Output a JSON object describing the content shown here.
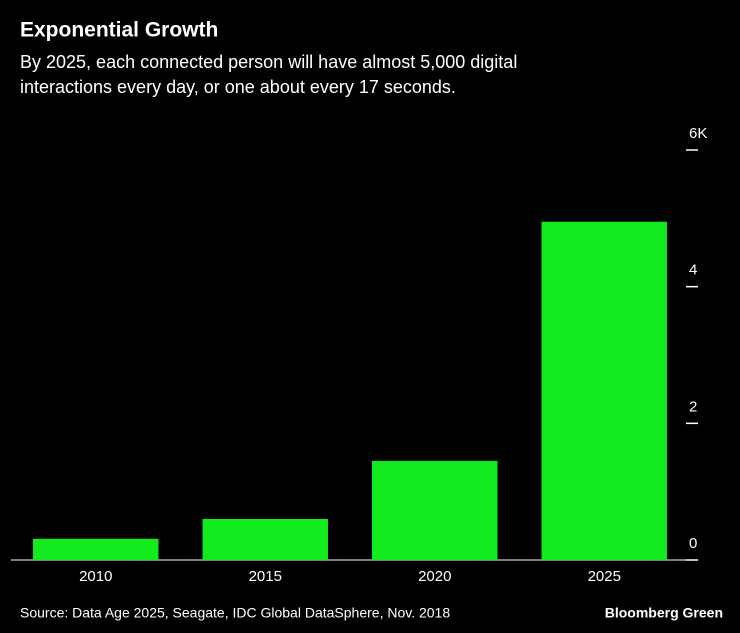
{
  "chart_data": {
    "type": "bar",
    "title": "Exponential Growth",
    "subtitle": [
      "By 2025, each connected person will have almost 5,000 digital",
      "interactions every day, or one about every 17 seconds."
    ],
    "categories": [
      "2010",
      "2015",
      "2020",
      "2025"
    ],
    "values": [
      0.31,
      0.6,
      1.45,
      4.95
    ],
    "color": "#12ec1e",
    "ylim": [
      0,
      6
    ],
    "yticks": [
      0,
      2,
      4,
      {
        "value": 6,
        "label": "6K"
      }
    ],
    "source": "Source: Data Age 2025, Seagate, IDC Global DataSphere, Nov. 2018",
    "brand": "Bloomberg Green"
  }
}
